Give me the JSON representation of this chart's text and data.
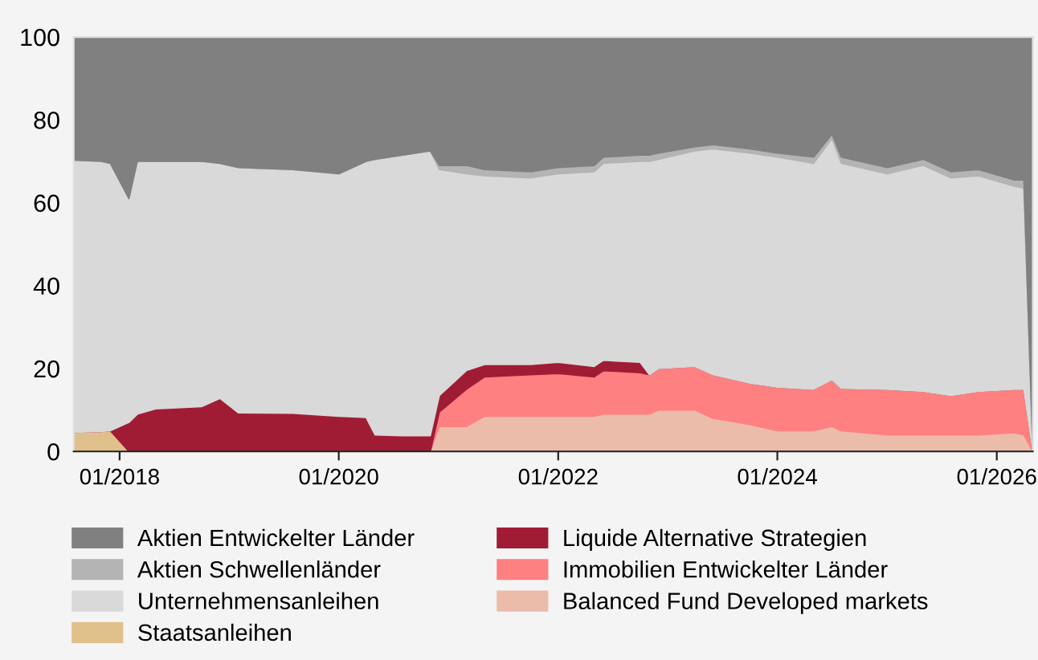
{
  "chart_data": {
    "type": "area",
    "stacked": true,
    "x": [
      "2017-08",
      "2017-11",
      "2017-12",
      "2018-02",
      "2018-03",
      "2018-05",
      "2018-10",
      "2018-12",
      "2019-02",
      "2019-08",
      "2020-01",
      "2020-04",
      "2020-05",
      "2020-08",
      "2020-11",
      "2020-12",
      "2021-03",
      "2021-05",
      "2021-10",
      "2022-01",
      "2022-05",
      "2022-06",
      "2022-10",
      "2022-11",
      "2022-12",
      "2023-04",
      "2023-06",
      "2023-10",
      "2024-01",
      "2024-05",
      "2024-07",
      "2024-08",
      "2025-01",
      "2025-05",
      "2025-08",
      "2025-11",
      "2026-03",
      "2026-04",
      "2026-05"
    ],
    "series": [
      {
        "name": "Staatsanleihen",
        "color": "#dfc08a",
        "values": [
          4.6,
          4.8,
          5,
          0,
          0,
          0,
          0,
          0,
          0,
          0,
          0,
          0,
          0,
          0,
          0,
          0,
          0,
          0,
          0,
          0,
          0,
          0,
          0,
          0,
          0,
          0,
          0,
          0,
          0,
          0,
          0,
          0,
          0,
          0,
          0,
          0,
          0,
          0,
          0
        ]
      },
      {
        "name": "Balanced Fund Developed markets",
        "color": "#ecbcab",
        "values": [
          0,
          0,
          0,
          0,
          0,
          0,
          0,
          0,
          0,
          0,
          0,
          0,
          0,
          0,
          0,
          6,
          6,
          8.5,
          8.5,
          8.5,
          8.5,
          9,
          9,
          9,
          10,
          10,
          8,
          6.5,
          5,
          5,
          6,
          5,
          4,
          4,
          4,
          4,
          4.5,
          4,
          0
        ]
      },
      {
        "name": "Immobilien Entwickelter Länder",
        "color": "#ff8080",
        "values": [
          0,
          0,
          0,
          0,
          0,
          0,
          0,
          0,
          0,
          0,
          0,
          0,
          0,
          0,
          0,
          3.5,
          9,
          9.5,
          10,
          10.3,
          9.5,
          10.5,
          10,
          9.5,
          10,
          10.5,
          10.5,
          10,
          10.5,
          10,
          11.3,
          10.2,
          11,
          10.5,
          9.5,
          10.5,
          10.5,
          11,
          0
        ]
      },
      {
        "name": "Liquide Alternative Strategien",
        "color": "#a01c35",
        "values": [
          0,
          0,
          0,
          7,
          9,
          10.3,
          10.8,
          12.8,
          9.3,
          9.2,
          8.5,
          8.2,
          4,
          3.8,
          3.8,
          4,
          4.5,
          3,
          2.5,
          2.7,
          2.5,
          2.5,
          2.5,
          0,
          0,
          0,
          0,
          0,
          0,
          0,
          0,
          0,
          0,
          0,
          0,
          0,
          0,
          0,
          0
        ]
      },
      {
        "name": "Unternehmensanleihen",
        "color": "#d9d9d9",
        "values": [
          65.7,
          65.2,
          64.5,
          54,
          61,
          59.7,
          59.2,
          56.7,
          59.2,
          58.8,
          58.5,
          61.8,
          66.5,
          67.7,
          68.7,
          54.5,
          47.5,
          45.5,
          45,
          45.5,
          47,
          47.5,
          48.5,
          51.5,
          50.5,
          52,
          54.5,
          55.5,
          55.5,
          54.5,
          58.2,
          54.3,
          52,
          54.5,
          52.5,
          52,
          49,
          48.5,
          0
        ]
      },
      {
        "name": "Aktien Schwellenländer",
        "color": "#b4b4b4",
        "values": [
          0,
          0,
          0,
          0,
          0,
          0,
          0,
          0,
          0,
          0,
          0,
          0,
          0,
          0,
          0,
          1,
          2,
          1.5,
          1.5,
          1.5,
          1.5,
          1.5,
          1.5,
          1.5,
          1.5,
          1,
          1,
          1,
          1,
          1.5,
          1,
          1.5,
          1.5,
          1.5,
          1.5,
          1.5,
          1.5,
          2,
          0
        ]
      },
      {
        "name": "Aktien Entwickelter Länder",
        "color": "#808080",
        "values": [
          29.7,
          30,
          30.5,
          39,
          30,
          30,
          30,
          30.5,
          31.5,
          32,
          33,
          30,
          29.5,
          28.5,
          27.5,
          31,
          31,
          32,
          32.5,
          31.5,
          31,
          29,
          28.5,
          28.5,
          28,
          26.5,
          26,
          27,
          28,
          29,
          23.5,
          29,
          31.5,
          29.5,
          32.5,
          32,
          34.5,
          34.5,
          100
        ]
      }
    ],
    "xlim": [
      "2017-08",
      "2026-05"
    ],
    "xticks": [
      {
        "value": "2018-01",
        "label": "01/2018"
      },
      {
        "value": "2020-01",
        "label": "01/2020"
      },
      {
        "value": "2022-01",
        "label": "01/2022"
      },
      {
        "value": "2024-01",
        "label": "01/2024"
      },
      {
        "value": "2026-01",
        "label": "01/2026"
      }
    ],
    "ylim": [
      0,
      100
    ],
    "yticks": [
      0,
      20,
      40,
      60,
      80,
      100
    ],
    "grid": false,
    "legend": "bottom"
  }
}
